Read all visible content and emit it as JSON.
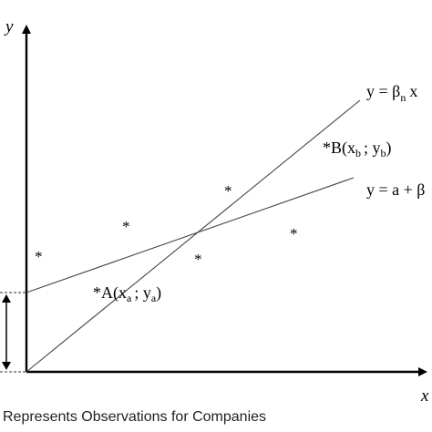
{
  "axes": {
    "y_label": "y",
    "x_label": "x"
  },
  "lines": {
    "line_n": {
      "prefix": "y = β",
      "subscript": "n",
      "suffix": "x"
    },
    "line_a": {
      "text": "y = a + β"
    }
  },
  "points": {
    "marker": "*",
    "point_a": {
      "open": "A(x",
      "sub1": "a",
      "sep": "; y",
      "sub2": "a",
      "close": ")"
    },
    "point_b": {
      "open": "B(x",
      "sub1": "b",
      "sep": "; y",
      "sub2": "b",
      "close": ")"
    }
  },
  "caption": "Represents Observations for Companies",
  "colors": {
    "ink": "#000000",
    "line": "#333333",
    "caption": "#222222"
  }
}
